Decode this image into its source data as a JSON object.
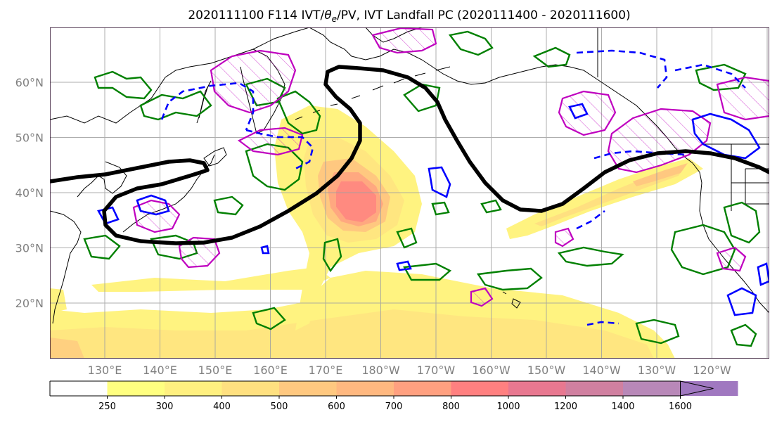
{
  "title_prefix": "2020111100 F114 IVT/",
  "title_theta": "θ",
  "title_theta_sub": "e",
  "title_suffix": "/PV, IVT Landfall PC (2020111400 - 2020111600)",
  "map": {
    "lat_labels": [
      {
        "lat": 60,
        "text": "60°N"
      },
      {
        "lat": 50,
        "text": "50°N"
      },
      {
        "lat": 40,
        "text": "40°N"
      },
      {
        "lat": 30,
        "text": "30°N"
      },
      {
        "lat": 20,
        "text": "20°N"
      }
    ],
    "lon_labels": [
      {
        "lon": 130,
        "text": "130°E"
      },
      {
        "lon": 140,
        "text": "140°E"
      },
      {
        "lon": 150,
        "text": "150°E"
      },
      {
        "lon": 160,
        "text": "160°E"
      },
      {
        "lon": 170,
        "text": "170°E"
      },
      {
        "lon": 180,
        "text": "180°W"
      },
      {
        "lon": 190,
        "text": "170°W"
      },
      {
        "lon": 200,
        "text": "160°W"
      },
      {
        "lon": 210,
        "text": "150°W"
      },
      {
        "lon": 220,
        "text": "140°W"
      },
      {
        "lon": 230,
        "text": "130°W"
      },
      {
        "lon": 240,
        "text": "120°W"
      }
    ],
    "colors": {
      "ivt_contour": "#000000",
      "pv_solid": "#0000ff",
      "pv_dashed": "#0000ff",
      "theta_e": "#008000",
      "pv_hatched": "#bf00bf",
      "coast": "#000000",
      "frame": "#2a0a2a"
    }
  },
  "colorbar": {
    "ticks": [
      "250",
      "300",
      "400",
      "500",
      "600",
      "700",
      "800",
      "1000",
      "1200",
      "1400",
      "1600"
    ],
    "colors": [
      "#ffffff",
      "#ffff80",
      "#fff080",
      "#ffe080",
      "#ffc880",
      "#ffb880",
      "#ffa080",
      "#ff8080",
      "#e87890",
      "#d080a0",
      "#b888b8",
      "#a078c0"
    ]
  }
}
